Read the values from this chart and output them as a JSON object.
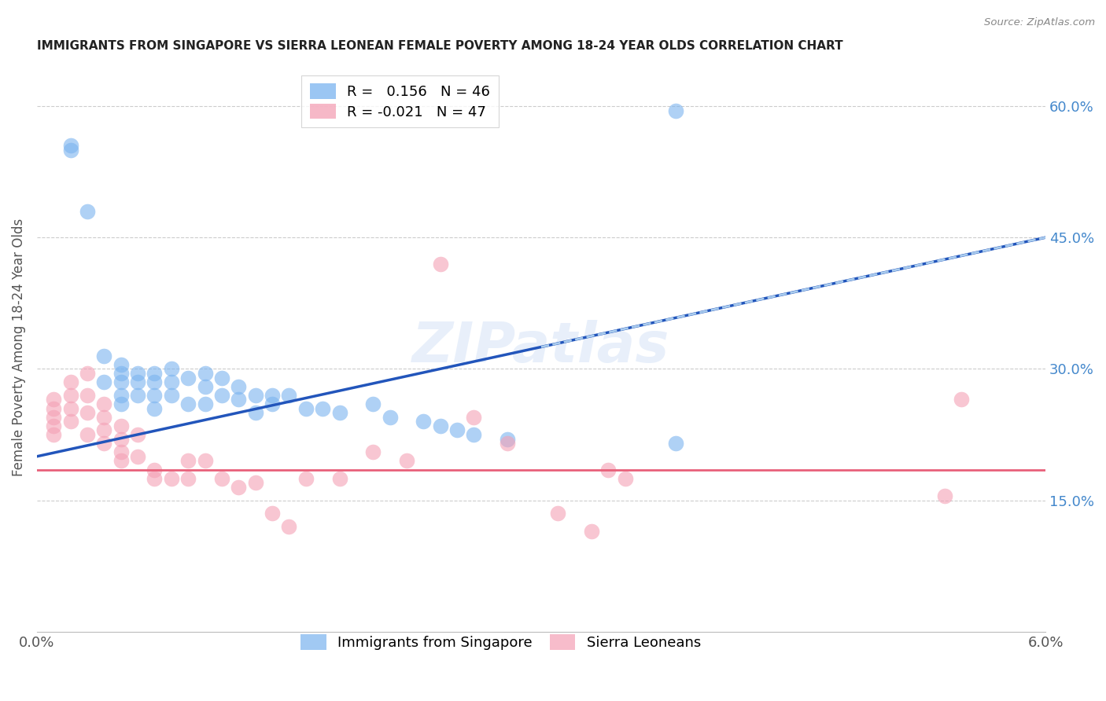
{
  "title": "IMMIGRANTS FROM SINGAPORE VS SIERRA LEONEAN FEMALE POVERTY AMONG 18-24 YEAR OLDS CORRELATION CHART",
  "source": "Source: ZipAtlas.com",
  "ylabel": "Female Poverty Among 18-24 Year Olds",
  "xlim": [
    0.0,
    0.06
  ],
  "ylim": [
    0.0,
    0.65
  ],
  "xtick_positions": [
    0.0,
    0.01,
    0.02,
    0.03,
    0.04,
    0.05,
    0.06
  ],
  "xticklabels": [
    "0.0%",
    "",
    "",
    "",
    "",
    "",
    "6.0%"
  ],
  "yticks_right": [
    0.15,
    0.3,
    0.45,
    0.6
  ],
  "ytick_labels_right": [
    "15.0%",
    "30.0%",
    "45.0%",
    "60.0%"
  ],
  "grid_color": "#cccccc",
  "watermark": "ZIPatlas",
  "blue_color": "#7ab3ef",
  "pink_color": "#f4a0b5",
  "blue_line_color": "#2255bb",
  "pink_line_color": "#e8607a",
  "blue_dash_color": "#aaccee",
  "singapore_x": [
    0.002,
    0.002,
    0.003,
    0.004,
    0.004,
    0.005,
    0.005,
    0.005,
    0.005,
    0.005,
    0.006,
    0.006,
    0.006,
    0.007,
    0.007,
    0.007,
    0.007,
    0.008,
    0.008,
    0.008,
    0.009,
    0.009,
    0.01,
    0.01,
    0.01,
    0.011,
    0.011,
    0.012,
    0.012,
    0.013,
    0.013,
    0.014,
    0.014,
    0.015,
    0.016,
    0.017,
    0.018,
    0.02,
    0.021,
    0.023,
    0.024,
    0.025,
    0.026,
    0.028,
    0.038,
    0.038
  ],
  "singapore_y": [
    0.555,
    0.55,
    0.48,
    0.315,
    0.285,
    0.305,
    0.295,
    0.285,
    0.27,
    0.26,
    0.295,
    0.285,
    0.27,
    0.295,
    0.285,
    0.27,
    0.255,
    0.3,
    0.285,
    0.27,
    0.29,
    0.26,
    0.295,
    0.28,
    0.26,
    0.29,
    0.27,
    0.28,
    0.265,
    0.27,
    0.25,
    0.27,
    0.26,
    0.27,
    0.255,
    0.255,
    0.25,
    0.26,
    0.245,
    0.24,
    0.235,
    0.23,
    0.225,
    0.22,
    0.215,
    0.595
  ],
  "sierraleone_x": [
    0.001,
    0.001,
    0.001,
    0.001,
    0.001,
    0.002,
    0.002,
    0.002,
    0.002,
    0.003,
    0.003,
    0.003,
    0.003,
    0.004,
    0.004,
    0.004,
    0.004,
    0.005,
    0.005,
    0.005,
    0.005,
    0.006,
    0.006,
    0.007,
    0.007,
    0.008,
    0.009,
    0.009,
    0.01,
    0.011,
    0.012,
    0.013,
    0.014,
    0.015,
    0.016,
    0.018,
    0.02,
    0.022,
    0.024,
    0.026,
    0.028,
    0.031,
    0.033,
    0.034,
    0.035,
    0.054,
    0.055
  ],
  "sierraleone_y": [
    0.265,
    0.255,
    0.245,
    0.235,
    0.225,
    0.285,
    0.27,
    0.255,
    0.24,
    0.295,
    0.27,
    0.25,
    0.225,
    0.26,
    0.245,
    0.23,
    0.215,
    0.235,
    0.22,
    0.205,
    0.195,
    0.225,
    0.2,
    0.185,
    0.175,
    0.175,
    0.195,
    0.175,
    0.195,
    0.175,
    0.165,
    0.17,
    0.135,
    0.12,
    0.175,
    0.175,
    0.205,
    0.195,
    0.42,
    0.245,
    0.215,
    0.135,
    0.115,
    0.185,
    0.175,
    0.155,
    0.265
  ]
}
